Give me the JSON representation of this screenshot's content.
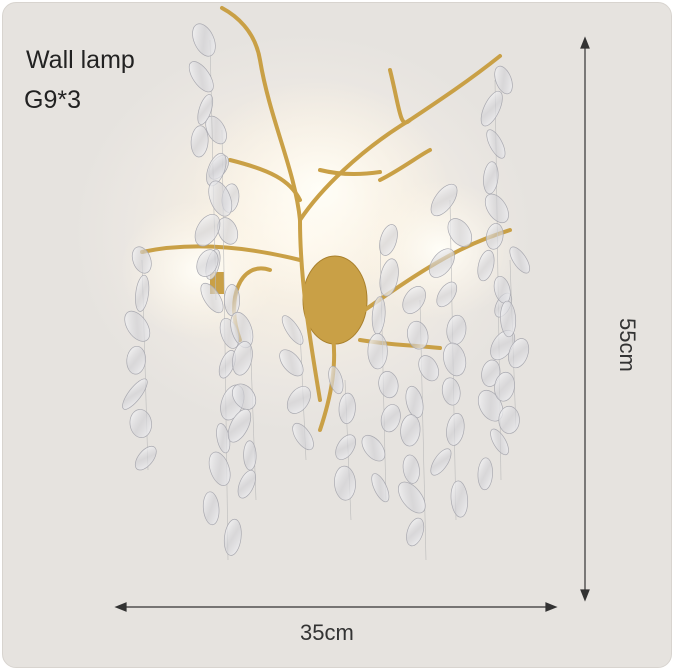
{
  "product": {
    "title": "Wall lamp",
    "bulbs": "G9*3",
    "width": "35cm",
    "height": "55cm"
  },
  "colors": {
    "background": "#e8e5e1",
    "brass": "#c9a046",
    "crystal": "#f4f4f6",
    "text": "#222222"
  }
}
